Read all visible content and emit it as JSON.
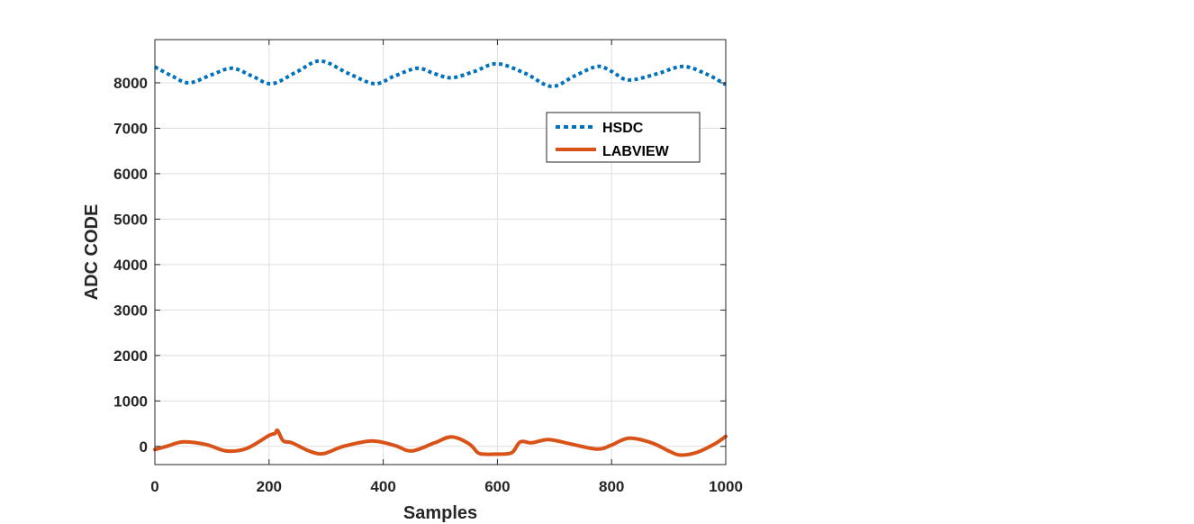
{
  "chart_data": {
    "type": "line",
    "title": "",
    "xlabel": "Samples",
    "ylabel": "ADC CODE",
    "xlim": [
      0,
      1000
    ],
    "ylim": [
      -400,
      8950
    ],
    "xticks": [
      0,
      200,
      400,
      600,
      800,
      1000
    ],
    "xtick_labels": [
      "0",
      "200",
      "400",
      "600",
      "800",
      "1000"
    ],
    "yticks": [
      0,
      1000,
      2000,
      3000,
      4000,
      5000,
      6000,
      7000,
      8000
    ],
    "ytick_labels": [
      "0",
      "1000",
      "2000",
      "3000",
      "4000",
      "5000",
      "6000",
      "7000",
      "8000"
    ],
    "grid": true,
    "legend_position": "northeast-inside",
    "series": [
      {
        "name": "HSDC",
        "color": "#0072BD",
        "style": "dotted",
        "x": [
          0,
          30,
          60,
          100,
          135,
          170,
          205,
          250,
          290,
          340,
          385,
          420,
          460,
          490,
          520,
          560,
          600,
          650,
          695,
          735,
          775,
          800,
          830,
          880,
          925,
          965,
          1000
        ],
        "y": [
          8350,
          8150,
          8000,
          8180,
          8320,
          8150,
          7980,
          8250,
          8480,
          8200,
          7980,
          8150,
          8320,
          8200,
          8110,
          8250,
          8420,
          8200,
          7920,
          8150,
          8360,
          8250,
          8060,
          8200,
          8360,
          8200,
          7960
        ]
      },
      {
        "name": "LABVIEW",
        "color": "#D95319",
        "style": "solid",
        "x": [
          0,
          20,
          50,
          90,
          125,
          160,
          200,
          210,
          215,
          225,
          240,
          270,
          295,
          330,
          380,
          420,
          450,
          490,
          520,
          550,
          565,
          575,
          600,
          625,
          640,
          660,
          690,
          730,
          775,
          800,
          830,
          870,
          900,
          920,
          950,
          980,
          1000
        ],
        "y": [
          -70,
          0,
          100,
          40,
          -100,
          -50,
          240,
          280,
          350,
          120,
          80,
          -100,
          -160,
          0,
          120,
          20,
          -100,
          80,
          210,
          60,
          -130,
          -170,
          -170,
          -140,
          100,
          80,
          150,
          50,
          -60,
          30,
          180,
          80,
          -100,
          -190,
          -130,
          50,
          220
        ]
      }
    ]
  },
  "legend": {
    "items": [
      {
        "label": "HSDC"
      },
      {
        "label": "LABVIEW"
      }
    ]
  }
}
